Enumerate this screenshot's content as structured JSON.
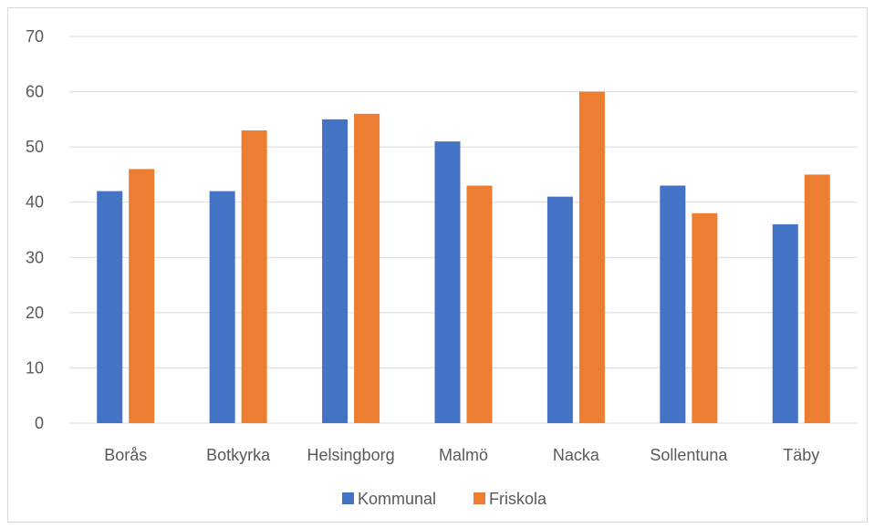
{
  "chart_data": {
    "type": "bar",
    "categories": [
      "Borås",
      "Botkyrka",
      "Helsingborg",
      "Malmö",
      "Nacka",
      "Sollentuna",
      "Täby"
    ],
    "series": [
      {
        "name": "Kommunal",
        "color": "#4472c4",
        "values": [
          42,
          42,
          55,
          51,
          41,
          43,
          36
        ]
      },
      {
        "name": "Friskola",
        "color": "#ed7d31",
        "values": [
          46,
          53,
          56,
          43,
          60,
          38,
          45
        ]
      }
    ],
    "ylim": [
      0,
      70
    ],
    "yticks": [
      0,
      10,
      20,
      30,
      40,
      50,
      60,
      70
    ],
    "grid": true,
    "legend_position": "bottom",
    "colors": {
      "gridline": "#d9d9d9",
      "text": "#595959"
    }
  }
}
